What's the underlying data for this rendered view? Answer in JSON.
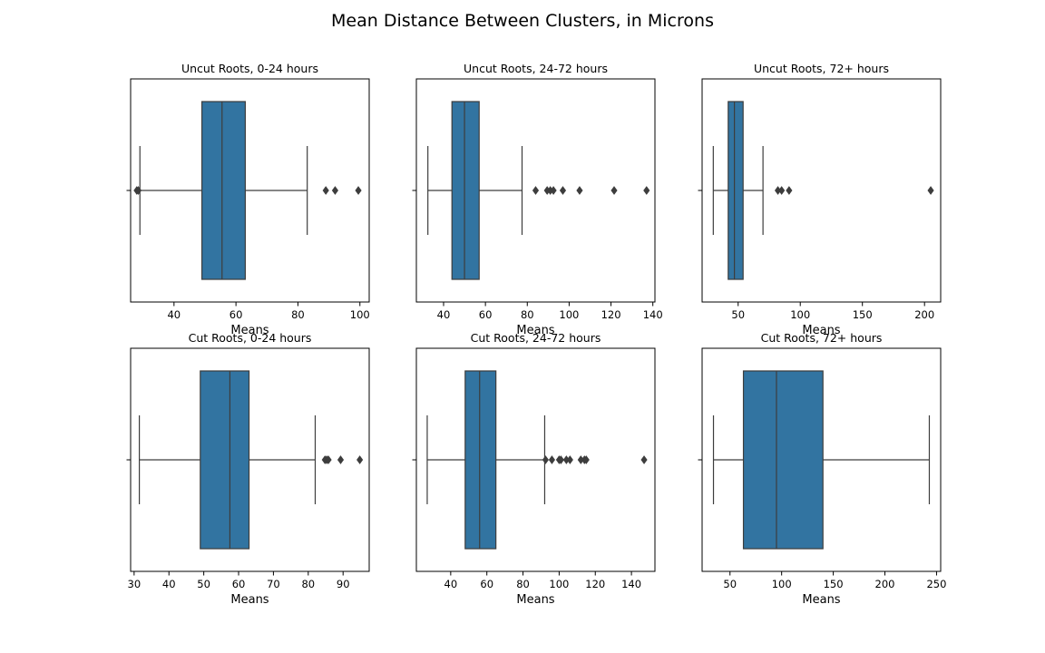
{
  "suptitle": "Mean Distance Between Clusters, in Microns",
  "colors": {
    "box": "#3274a1",
    "line": "#3d3d3d",
    "text": "#000000",
    "frame": "#000000"
  },
  "chart_data": [
    {
      "type": "box",
      "title": "Uncut Roots, 0-24 hours",
      "xlabel": "Means",
      "xlim": [
        26,
        103
      ],
      "xticks": [
        40,
        60,
        80,
        100
      ],
      "whislo": 29,
      "q1": 49,
      "med": 55.5,
      "q3": 63,
      "whishi": 83,
      "fliers": [
        28,
        28.5,
        89,
        92,
        99.5
      ]
    },
    {
      "type": "box",
      "title": "Uncut Roots, 24-72 hours",
      "xlabel": "Means",
      "xlim": [
        27,
        141
      ],
      "xticks": [
        40,
        60,
        80,
        100,
        120,
        140
      ],
      "whislo": 32.5,
      "q1": 44,
      "med": 50,
      "q3": 57,
      "whishi": 77.5,
      "fliers": [
        84,
        89.5,
        91,
        92.5,
        97,
        105,
        121.5,
        137
      ]
    },
    {
      "type": "box",
      "title": "Uncut Roots, 72+ hours",
      "xlabel": "Means",
      "xlim": [
        21,
        213
      ],
      "xticks": [
        50,
        100,
        150,
        200
      ],
      "whislo": 30,
      "q1": 42,
      "med": 47,
      "q3": 54,
      "whishi": 70,
      "fliers": [
        82,
        85,
        91,
        205
      ]
    },
    {
      "type": "box",
      "title": "Cut Roots, 0-24 hours",
      "xlabel": "Means",
      "xlim": [
        29,
        97.5
      ],
      "xticks": [
        30,
        40,
        50,
        60,
        70,
        80,
        90
      ],
      "whislo": 31.5,
      "q1": 49,
      "med": 57.5,
      "q3": 63,
      "whishi": 82,
      "fliers": [
        84.8,
        85.3,
        85.8,
        89.3,
        94.8
      ]
    },
    {
      "type": "box",
      "title": "Cut Roots, 24-72 hours",
      "xlabel": "Means",
      "xlim": [
        21,
        153
      ],
      "xticks": [
        40,
        60,
        80,
        100,
        120,
        140
      ],
      "whislo": 27,
      "q1": 48,
      "med": 56,
      "q3": 65,
      "whishi": 92,
      "fliers": [
        92.5,
        96,
        100,
        101,
        104,
        106,
        112,
        114,
        115,
        147
      ]
    },
    {
      "type": "box",
      "title": "Cut Roots, 72+ hours",
      "xlabel": "Means",
      "xlim": [
        23,
        254
      ],
      "xticks": [
        50,
        100,
        150,
        200,
        250
      ],
      "whislo": 34,
      "q1": 63,
      "med": 95,
      "q3": 140,
      "whishi": 243,
      "fliers": []
    }
  ]
}
